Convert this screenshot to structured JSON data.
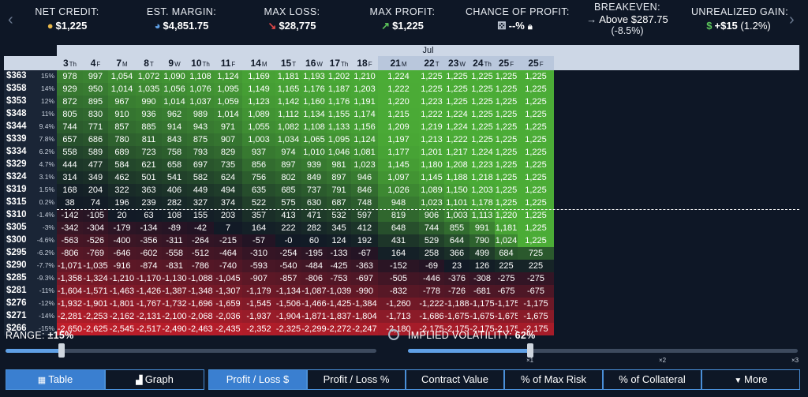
{
  "stats": {
    "net_credit": {
      "label": "NET CREDIT:",
      "value": "$1,225",
      "icon": "coins-icon"
    },
    "est_margin": {
      "label": "EST. MARGIN:",
      "value": "$4,851.75",
      "icon": "pie-icon"
    },
    "max_loss": {
      "label": "MAX LOSS:",
      "value": "$28,775",
      "icon": "arrow-down-right-icon"
    },
    "max_profit": {
      "label": "MAX PROFIT:",
      "value": "$1,225",
      "icon": "arrow-up-right-icon"
    },
    "chance_of_profit": {
      "label": "CHANCE OF PROFIT:",
      "value": "--%",
      "icon": "dice-icon"
    },
    "breakeven": {
      "label": "BREAKEVEN:",
      "value": "Above $287.75",
      "sub": "(-8.5%)",
      "icon": "arrow-right-icon"
    },
    "unrealized_gain": {
      "label": "UNREALIZED GAIN:",
      "value": "+$15",
      "sub": "(1.2%)",
      "icon": "money-bag-icon"
    }
  },
  "table": {
    "month": "Jul",
    "days": [
      {
        "d": "3",
        "w": "Th"
      },
      {
        "d": "4",
        "w": "F"
      },
      {
        "d": "7",
        "w": "M"
      },
      {
        "d": "8",
        "w": "T"
      },
      {
        "d": "9",
        "w": "W"
      },
      {
        "d": "10",
        "w": "Th"
      },
      {
        "d": "11",
        "w": "F"
      },
      {
        "d": "14",
        "w": "M"
      },
      {
        "d": "15",
        "w": "T"
      },
      {
        "d": "16",
        "w": "W"
      },
      {
        "d": "17",
        "w": "Th"
      },
      {
        "d": "18",
        "w": "F"
      },
      {
        "d": "21",
        "w": "M"
      },
      {
        "d": "22",
        "w": "T"
      },
      {
        "d": "23",
        "w": "W"
      },
      {
        "d": "24",
        "w": "Th"
      },
      {
        "d": "25",
        "w": "F"
      },
      {
        "d": "25",
        "w": "F"
      }
    ],
    "rows": [
      {
        "p": "$363",
        "pct": "15%",
        "v": [
          978,
          997,
          1054,
          1072,
          1090,
          1108,
          1124,
          1169,
          1181,
          1193,
          1202,
          1210,
          1224,
          1225,
          1225,
          1225,
          1225,
          1225
        ]
      },
      {
        "p": "$358",
        "pct": "14%",
        "v": [
          929,
          950,
          1014,
          1035,
          1056,
          1076,
          1095,
          1149,
          1165,
          1176,
          1187,
          1203,
          1222,
          1225,
          1225,
          1225,
          1225,
          1225
        ]
      },
      {
        "p": "$353",
        "pct": "12%",
        "v": [
          872,
          895,
          967,
          990,
          1014,
          1037,
          1059,
          1123,
          1142,
          1160,
          1176,
          1191,
          1220,
          1223,
          1225,
          1225,
          1225,
          1225
        ]
      },
      {
        "p": "$348",
        "pct": "11%",
        "v": [
          805,
          830,
          910,
          936,
          962,
          989,
          1014,
          1089,
          1112,
          1134,
          1155,
          1174,
          1215,
          1222,
          1224,
          1225,
          1225,
          1225
        ]
      },
      {
        "p": "$344",
        "pct": "9.4%",
        "v": [
          744,
          771,
          857,
          885,
          914,
          943,
          971,
          1055,
          1082,
          1108,
          1133,
          1156,
          1209,
          1219,
          1224,
          1225,
          1225,
          1225
        ]
      },
      {
        "p": "$339",
        "pct": "7.8%",
        "v": [
          657,
          686,
          780,
          811,
          843,
          875,
          907,
          1003,
          1034,
          1065,
          1095,
          1124,
          1197,
          1213,
          1222,
          1225,
          1225,
          1225
        ]
      },
      {
        "p": "$334",
        "pct": "6.2%",
        "v": [
          558,
          589,
          689,
          723,
          758,
          793,
          829,
          937,
          974,
          1010,
          1046,
          1081,
          1177,
          1201,
          1217,
          1224,
          1225,
          1225
        ]
      },
      {
        "p": "$329",
        "pct": "4.7%",
        "v": [
          444,
          477,
          584,
          621,
          658,
          697,
          735,
          856,
          897,
          939,
          981,
          1023,
          1145,
          1180,
          1208,
          1223,
          1225,
          1225
        ]
      },
      {
        "p": "$324",
        "pct": "3.1%",
        "v": [
          314,
          349,
          462,
          501,
          541,
          582,
          624,
          756,
          802,
          849,
          897,
          946,
          1097,
          1145,
          1188,
          1218,
          1225,
          1225
        ]
      },
      {
        "p": "$319",
        "pct": "1.5%",
        "v": [
          168,
          204,
          322,
          363,
          406,
          449,
          494,
          635,
          685,
          737,
          791,
          846,
          1026,
          1089,
          1150,
          1203,
          1225,
          1225
        ]
      },
      {
        "p": "$315",
        "pct": "0.2%",
        "v": [
          38,
          74,
          196,
          239,
          282,
          327,
          374,
          522,
          575,
          630,
          687,
          748,
          948,
          1023,
          1101,
          1178,
          1225,
          1225
        ]
      },
      {
        "p": "$310",
        "pct": "-1.4%",
        "v": [
          -142,
          -105,
          20,
          63,
          108,
          155,
          203,
          357,
          413,
          471,
          532,
          597,
          819,
          906,
          1003,
          1113,
          1220,
          1225
        ]
      },
      {
        "p": "$305",
        "pct": "-3%",
        "v": [
          -342,
          -304,
          -179,
          -134,
          -89,
          -42,
          7,
          164,
          222,
          282,
          345,
          412,
          648,
          744,
          855,
          991,
          1181,
          1225
        ]
      },
      {
        "p": "$300",
        "pct": "-4.6%",
        "v": [
          -563,
          -526,
          -400,
          -356,
          -311,
          -264,
          -215,
          -57,
          "-0",
          60,
          124,
          192,
          431,
          529,
          644,
          790,
          1024,
          1225
        ]
      },
      {
        "p": "$295",
        "pct": "-6.2%",
        "v": [
          -806,
          -769,
          -646,
          -602,
          -558,
          -512,
          -464,
          -310,
          -254,
          -195,
          -133,
          -67,
          164,
          258,
          366,
          499,
          684,
          725
        ]
      },
      {
        "p": "$290",
        "pct": "-7.7%",
        "v": [
          -1071,
          -1035,
          -916,
          -874,
          -831,
          -786,
          -740,
          -593,
          -540,
          -484,
          -425,
          -363,
          -152,
          -69,
          23,
          126,
          225,
          225
        ]
      },
      {
        "p": "$285",
        "pct": "-9.3%",
        "v": [
          -1358,
          -1324,
          -1210,
          -1170,
          -1130,
          -1088,
          -1045,
          -907,
          -857,
          -806,
          -753,
          -697,
          -505,
          -446,
          -376,
          -308,
          -275,
          -275
        ]
      },
      {
        "p": "$281",
        "pct": "-11%",
        "v": [
          -1604,
          -1571,
          -1463,
          -1426,
          -1387,
          -1348,
          -1307,
          -1179,
          -1134,
          -1087,
          -1039,
          -990,
          -832,
          -778,
          -726,
          -681,
          -675,
          -675
        ]
      },
      {
        "p": "$276",
        "pct": "-12%",
        "v": [
          -1932,
          -1901,
          -1801,
          -1767,
          -1732,
          -1696,
          -1659,
          -1545,
          -1506,
          -1466,
          -1425,
          -1384,
          -1260,
          -1222,
          -1188,
          -1175,
          -1175,
          -1175
        ]
      },
      {
        "p": "$271",
        "pct": "-14%",
        "v": [
          -2281,
          -2253,
          -2162,
          -2131,
          -2100,
          -2068,
          -2036,
          -1937,
          -1904,
          -1871,
          -1837,
          -1804,
          -1713,
          -1686,
          -1675,
          -1675,
          -1675,
          -1675
        ]
      },
      {
        "p": "$266",
        "pct": "-15%",
        "v": [
          -2650,
          -2625,
          -2545,
          -2517,
          -2490,
          -2463,
          -2435,
          -2352,
          -2325,
          -2299,
          -2272,
          -2247,
          -2180,
          -2175,
          -2175,
          -2175,
          -2175,
          -2175
        ]
      }
    ]
  },
  "range": {
    "label": "RANGE: ",
    "value": "±15%"
  },
  "iv": {
    "label": "IMPLIED VOLATILITY: ",
    "value": "62%",
    "ticks": [
      "×1",
      "×2",
      "×3"
    ]
  },
  "view_tabs": {
    "table": "Table",
    "graph": "Graph"
  },
  "metric_tabs": [
    "Profit / Loss $",
    "Profit / Loss %",
    "Contract Value",
    "% of Max Risk",
    "% of Collateral"
  ],
  "more_label": "More"
}
